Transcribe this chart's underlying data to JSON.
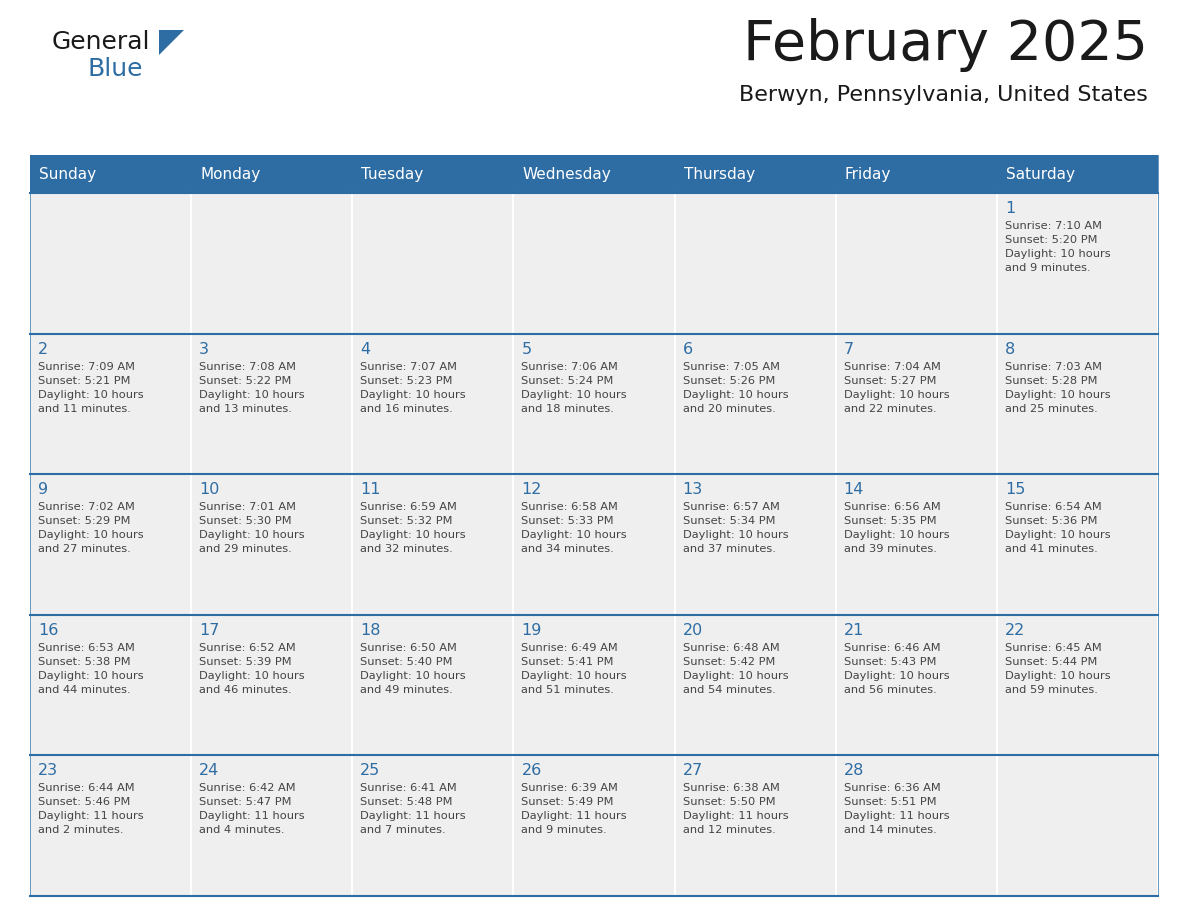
{
  "title": "February 2025",
  "subtitle": "Berwyn, Pennsylvania, United States",
  "header_bg_color": "#2E6DA4",
  "header_text_color": "#FFFFFF",
  "cell_bg_color": "#EFEFEF",
  "cell_border_color": "#2E6DA4",
  "day_number_color": "#2E6DA4",
  "detail_text_color": "#444444",
  "background_color": "#FFFFFF",
  "days_of_week": [
    "Sunday",
    "Monday",
    "Tuesday",
    "Wednesday",
    "Thursday",
    "Friday",
    "Saturday"
  ],
  "calendar_data": [
    [
      null,
      null,
      null,
      null,
      null,
      null,
      {
        "day": "1",
        "sunrise": "7:10 AM",
        "sunset": "5:20 PM",
        "daylight": "10 hours\nand 9 minutes."
      }
    ],
    [
      {
        "day": "2",
        "sunrise": "7:09 AM",
        "sunset": "5:21 PM",
        "daylight": "10 hours\nand 11 minutes."
      },
      {
        "day": "3",
        "sunrise": "7:08 AM",
        "sunset": "5:22 PM",
        "daylight": "10 hours\nand 13 minutes."
      },
      {
        "day": "4",
        "sunrise": "7:07 AM",
        "sunset": "5:23 PM",
        "daylight": "10 hours\nand 16 minutes."
      },
      {
        "day": "5",
        "sunrise": "7:06 AM",
        "sunset": "5:24 PM",
        "daylight": "10 hours\nand 18 minutes."
      },
      {
        "day": "6",
        "sunrise": "7:05 AM",
        "sunset": "5:26 PM",
        "daylight": "10 hours\nand 20 minutes."
      },
      {
        "day": "7",
        "sunrise": "7:04 AM",
        "sunset": "5:27 PM",
        "daylight": "10 hours\nand 22 minutes."
      },
      {
        "day": "8",
        "sunrise": "7:03 AM",
        "sunset": "5:28 PM",
        "daylight": "10 hours\nand 25 minutes."
      }
    ],
    [
      {
        "day": "9",
        "sunrise": "7:02 AM",
        "sunset": "5:29 PM",
        "daylight": "10 hours\nand 27 minutes."
      },
      {
        "day": "10",
        "sunrise": "7:01 AM",
        "sunset": "5:30 PM",
        "daylight": "10 hours\nand 29 minutes."
      },
      {
        "day": "11",
        "sunrise": "6:59 AM",
        "sunset": "5:32 PM",
        "daylight": "10 hours\nand 32 minutes."
      },
      {
        "day": "12",
        "sunrise": "6:58 AM",
        "sunset": "5:33 PM",
        "daylight": "10 hours\nand 34 minutes."
      },
      {
        "day": "13",
        "sunrise": "6:57 AM",
        "sunset": "5:34 PM",
        "daylight": "10 hours\nand 37 minutes."
      },
      {
        "day": "14",
        "sunrise": "6:56 AM",
        "sunset": "5:35 PM",
        "daylight": "10 hours\nand 39 minutes."
      },
      {
        "day": "15",
        "sunrise": "6:54 AM",
        "sunset": "5:36 PM",
        "daylight": "10 hours\nand 41 minutes."
      }
    ],
    [
      {
        "day": "16",
        "sunrise": "6:53 AM",
        "sunset": "5:38 PM",
        "daylight": "10 hours\nand 44 minutes."
      },
      {
        "day": "17",
        "sunrise": "6:52 AM",
        "sunset": "5:39 PM",
        "daylight": "10 hours\nand 46 minutes."
      },
      {
        "day": "18",
        "sunrise": "6:50 AM",
        "sunset": "5:40 PM",
        "daylight": "10 hours\nand 49 minutes."
      },
      {
        "day": "19",
        "sunrise": "6:49 AM",
        "sunset": "5:41 PM",
        "daylight": "10 hours\nand 51 minutes."
      },
      {
        "day": "20",
        "sunrise": "6:48 AM",
        "sunset": "5:42 PM",
        "daylight": "10 hours\nand 54 minutes."
      },
      {
        "day": "21",
        "sunrise": "6:46 AM",
        "sunset": "5:43 PM",
        "daylight": "10 hours\nand 56 minutes."
      },
      {
        "day": "22",
        "sunrise": "6:45 AM",
        "sunset": "5:44 PM",
        "daylight": "10 hours\nand 59 minutes."
      }
    ],
    [
      {
        "day": "23",
        "sunrise": "6:44 AM",
        "sunset": "5:46 PM",
        "daylight": "11 hours\nand 2 minutes."
      },
      {
        "day": "24",
        "sunrise": "6:42 AM",
        "sunset": "5:47 PM",
        "daylight": "11 hours\nand 4 minutes."
      },
      {
        "day": "25",
        "sunrise": "6:41 AM",
        "sunset": "5:48 PM",
        "daylight": "11 hours\nand 7 minutes."
      },
      {
        "day": "26",
        "sunrise": "6:39 AM",
        "sunset": "5:49 PM",
        "daylight": "11 hours\nand 9 minutes."
      },
      {
        "day": "27",
        "sunrise": "6:38 AM",
        "sunset": "5:50 PM",
        "daylight": "11 hours\nand 12 minutes."
      },
      {
        "day": "28",
        "sunrise": "6:36 AM",
        "sunset": "5:51 PM",
        "daylight": "11 hours\nand 14 minutes."
      },
      null
    ]
  ],
  "logo_general_color": "#1a1a1a",
  "logo_blue_color": "#2E6DA4",
  "logo_triangle_color": "#2E6DA4"
}
